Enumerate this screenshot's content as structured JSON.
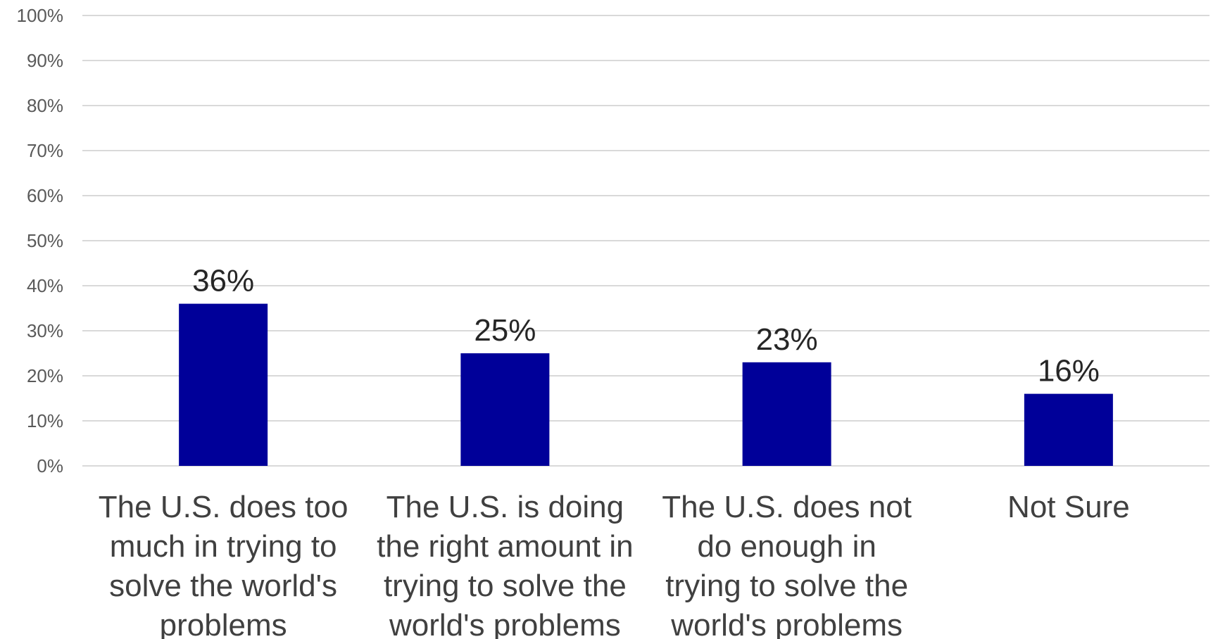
{
  "chart_data": {
    "type": "bar",
    "categories": [
      "The U.S. does too much in trying to solve the world's problems",
      "The U.S. is doing the right amount in trying to solve the world's problems",
      "The U.S. does not do enough in trying to solve the world's problems",
      "Not Sure"
    ],
    "category_lines": [
      [
        "The U.S. does too",
        "much in trying to",
        "solve the world's",
        "problems"
      ],
      [
        "The U.S. is doing",
        "the right amount in",
        "trying to solve the",
        "world's problems"
      ],
      [
        "The U.S. does not",
        "do enough in",
        "trying to solve the",
        "world's problems"
      ],
      [
        "Not Sure"
      ]
    ],
    "values": [
      36,
      25,
      23,
      16
    ],
    "data_labels": [
      "36%",
      "25%",
      "23%",
      "16%"
    ],
    "ylim": [
      0,
      100
    ],
    "yticks": [
      0,
      10,
      20,
      30,
      40,
      50,
      60,
      70,
      80,
      90,
      100
    ],
    "ytick_labels": [
      "0%",
      "10%",
      "20%",
      "30%",
      "40%",
      "50%",
      "60%",
      "70%",
      "80%",
      "90%",
      "100%"
    ],
    "grid": true,
    "bar_color": "#000099",
    "title": "",
    "xlabel": "",
    "ylabel": ""
  }
}
